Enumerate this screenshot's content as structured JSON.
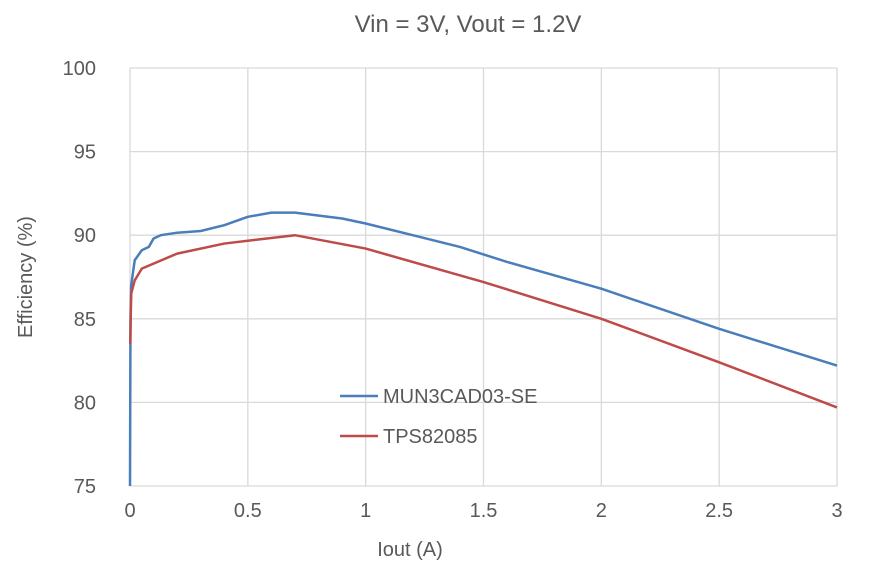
{
  "chart_data": {
    "type": "line",
    "title": "Vin = 3V, Vout = 1.2V",
    "xlabel": "Iout (A)",
    "ylabel": "Efficiency (%)",
    "xlim": [
      0,
      3
    ],
    "ylim": [
      75,
      100
    ],
    "xticks": [
      "0",
      "0.5",
      "1",
      "1.5",
      "2",
      "2.5",
      "3"
    ],
    "yticks": [
      "75",
      "80",
      "85",
      "90",
      "95",
      "100"
    ],
    "grid": true,
    "legend_placement": "center-left",
    "series": [
      {
        "name": "MUN3CAD03-SE",
        "color": "#4a7ebb",
        "x": [
          0,
          0.002,
          0.005,
          0.02,
          0.05,
          0.08,
          0.1,
          0.13,
          0.2,
          0.3,
          0.4,
          0.5,
          0.6,
          0.7,
          0.9,
          1,
          1.2,
          1.4,
          1.6,
          2,
          2.5,
          3
        ],
        "y": [
          75,
          85,
          87,
          88.5,
          89.1,
          89.3,
          89.8,
          90.0,
          90.15,
          90.25,
          90.6,
          91.1,
          91.35,
          91.35,
          91.0,
          90.7,
          90.0,
          89.3,
          88.4,
          86.8,
          84.4,
          82.2
        ]
      },
      {
        "name": "TPS82085",
        "color": "#be4b48",
        "x": [
          0.001,
          0.005,
          0.02,
          0.05,
          0.2,
          0.4,
          0.7,
          1,
          1.5,
          2,
          2.5,
          3
        ],
        "y": [
          83.5,
          86.5,
          87.3,
          88.0,
          88.9,
          89.5,
          90.0,
          89.2,
          87.2,
          85.0,
          82.4,
          79.7
        ]
      }
    ]
  }
}
